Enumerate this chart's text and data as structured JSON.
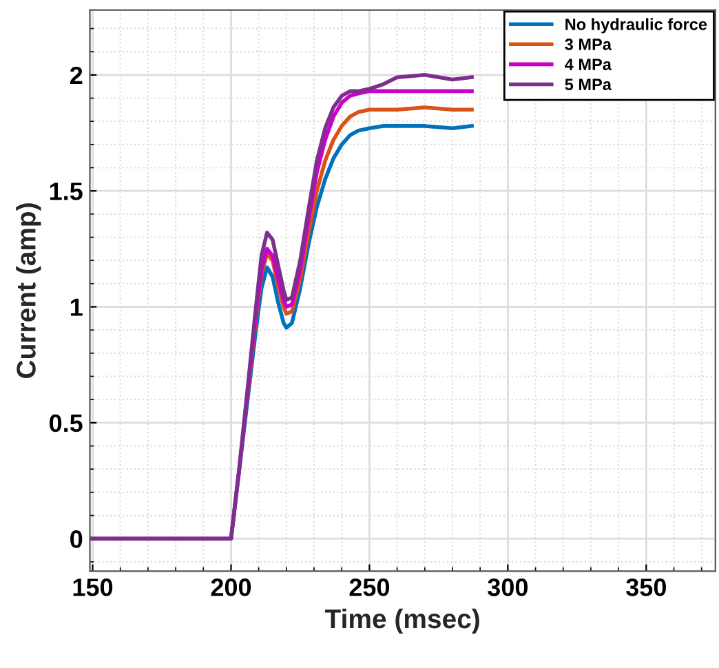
{
  "chart_data": {
    "type": "line",
    "xlabel": "Time (msec)",
    "ylabel": "Current (amp)",
    "x": [
      149,
      200,
      203,
      206,
      209,
      211,
      213,
      215,
      217,
      219,
      220,
      222,
      225,
      228,
      231,
      234,
      237,
      240,
      243,
      246,
      250,
      255,
      260,
      270,
      280,
      287
    ],
    "series": [
      {
        "name": "No hydraulic force",
        "color": "#0072bd",
        "values": [
          0,
          0,
          0.3,
          0.6,
          0.9,
          1.08,
          1.17,
          1.13,
          1.02,
          0.93,
          0.91,
          0.93,
          1.08,
          1.27,
          1.43,
          1.55,
          1.64,
          1.7,
          1.74,
          1.76,
          1.77,
          1.78,
          1.78,
          1.78,
          1.77,
          1.78
        ]
      },
      {
        "name": "3 MPa",
        "color": "#d95319",
        "values": [
          null,
          null,
          null,
          0.62,
          0.95,
          1.14,
          1.23,
          1.2,
          1.09,
          1.0,
          0.97,
          0.98,
          1.12,
          1.32,
          1.5,
          1.63,
          1.72,
          1.78,
          1.82,
          1.84,
          1.85,
          1.85,
          1.85,
          1.86,
          1.85,
          1.85
        ]
      },
      {
        "name": "4 MPa",
        "color": "#cc00cc",
        "values": [
          0,
          0,
          0.3,
          0.63,
          0.97,
          1.16,
          1.25,
          1.22,
          1.12,
          1.03,
          1.0,
          1.01,
          1.16,
          1.38,
          1.58,
          1.72,
          1.82,
          1.88,
          1.91,
          1.92,
          1.93,
          1.93,
          1.93,
          1.93,
          1.93,
          1.93
        ]
      },
      {
        "name": "5 MPa",
        "color": "#7e2f8e",
        "values": [
          0,
          0,
          0.31,
          0.65,
          1.0,
          1.22,
          1.32,
          1.29,
          1.18,
          1.07,
          1.03,
          1.04,
          1.2,
          1.42,
          1.63,
          1.77,
          1.86,
          1.91,
          1.93,
          1.93,
          1.94,
          1.96,
          1.99,
          2.0,
          1.98,
          1.99
        ]
      }
    ],
    "xlim": [
      149,
      375
    ],
    "ylim": [
      -0.14,
      2.28
    ],
    "xticks": [
      150,
      200,
      250,
      300,
      350
    ],
    "yticks": [
      0,
      0.5,
      1,
      1.5,
      2
    ],
    "grid": true,
    "legend": "top right",
    "marker": "none",
    "line_style": "solid"
  }
}
